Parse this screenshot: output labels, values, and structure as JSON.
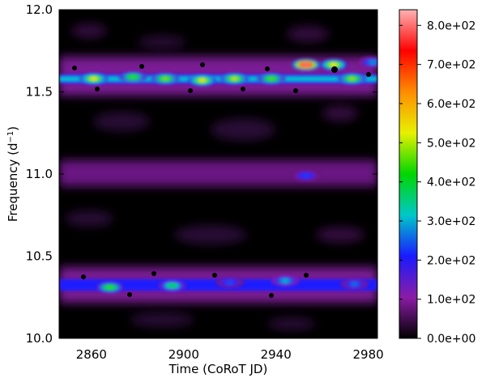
{
  "chart_data": {
    "type": "heatmap",
    "xlabel": "Time (CoRoT JD)",
    "ylabel_prefix": "Frequency (d",
    "ylabel_sup": "−1",
    "ylabel_suffix": ")",
    "xlim": [
      2846,
      2984
    ],
    "ylim": [
      10.0,
      12.0
    ],
    "x_ticks": [
      2860,
      2900,
      2940,
      2980
    ],
    "y_ticks": [
      10.0,
      10.5,
      11.0,
      11.5,
      12.0
    ],
    "y_tick_labels": [
      "10.0",
      "10.5",
      "11.0",
      "11.5",
      "12.0"
    ],
    "colorbar": {
      "range": [
        0,
        840
      ],
      "ticks": [
        0,
        100,
        200,
        300,
        400,
        500,
        600,
        700,
        800
      ],
      "tick_labels": [
        "0.0e+00",
        "1.0e+02",
        "2.0e+02",
        "3.0e+02",
        "4.0e+02",
        "5.0e+02",
        "6.0e+02",
        "7.0e+02",
        "8.0e+02"
      ]
    },
    "features": [
      {
        "x": 2861,
        "y": 11.58,
        "value": 520
      },
      {
        "x": 2878,
        "y": 11.59,
        "value": 440
      },
      {
        "x": 2892,
        "y": 11.58,
        "value": 470
      },
      {
        "x": 2908,
        "y": 11.57,
        "value": 520
      },
      {
        "x": 2922,
        "y": 11.58,
        "value": 500
      },
      {
        "x": 2938,
        "y": 11.58,
        "value": 450
      },
      {
        "x": 2953,
        "y": 11.665,
        "value": 800
      },
      {
        "x": 2965,
        "y": 11.665,
        "value": 530
      },
      {
        "x": 2973,
        "y": 11.58,
        "value": 480
      },
      {
        "x": 2982,
        "y": 11.68,
        "value": 280
      },
      {
        "x": 2953,
        "y": 10.99,
        "value": 230
      },
      {
        "x": 2868,
        "y": 10.31,
        "value": 440
      },
      {
        "x": 2895,
        "y": 10.32,
        "value": 380
      },
      {
        "x": 2920,
        "y": 10.34,
        "value": 240
      },
      {
        "x": 2944,
        "y": 10.35,
        "value": 300
      },
      {
        "x": 2974,
        "y": 10.33,
        "value": 260
      }
    ],
    "colormap": [
      "#000000",
      "#8b1ca6",
      "#1a1aff",
      "#00c8c8",
      "#00d600",
      "#e8f000",
      "#ff8c00",
      "#ff0000",
      "#ffb3b3"
    ]
  }
}
